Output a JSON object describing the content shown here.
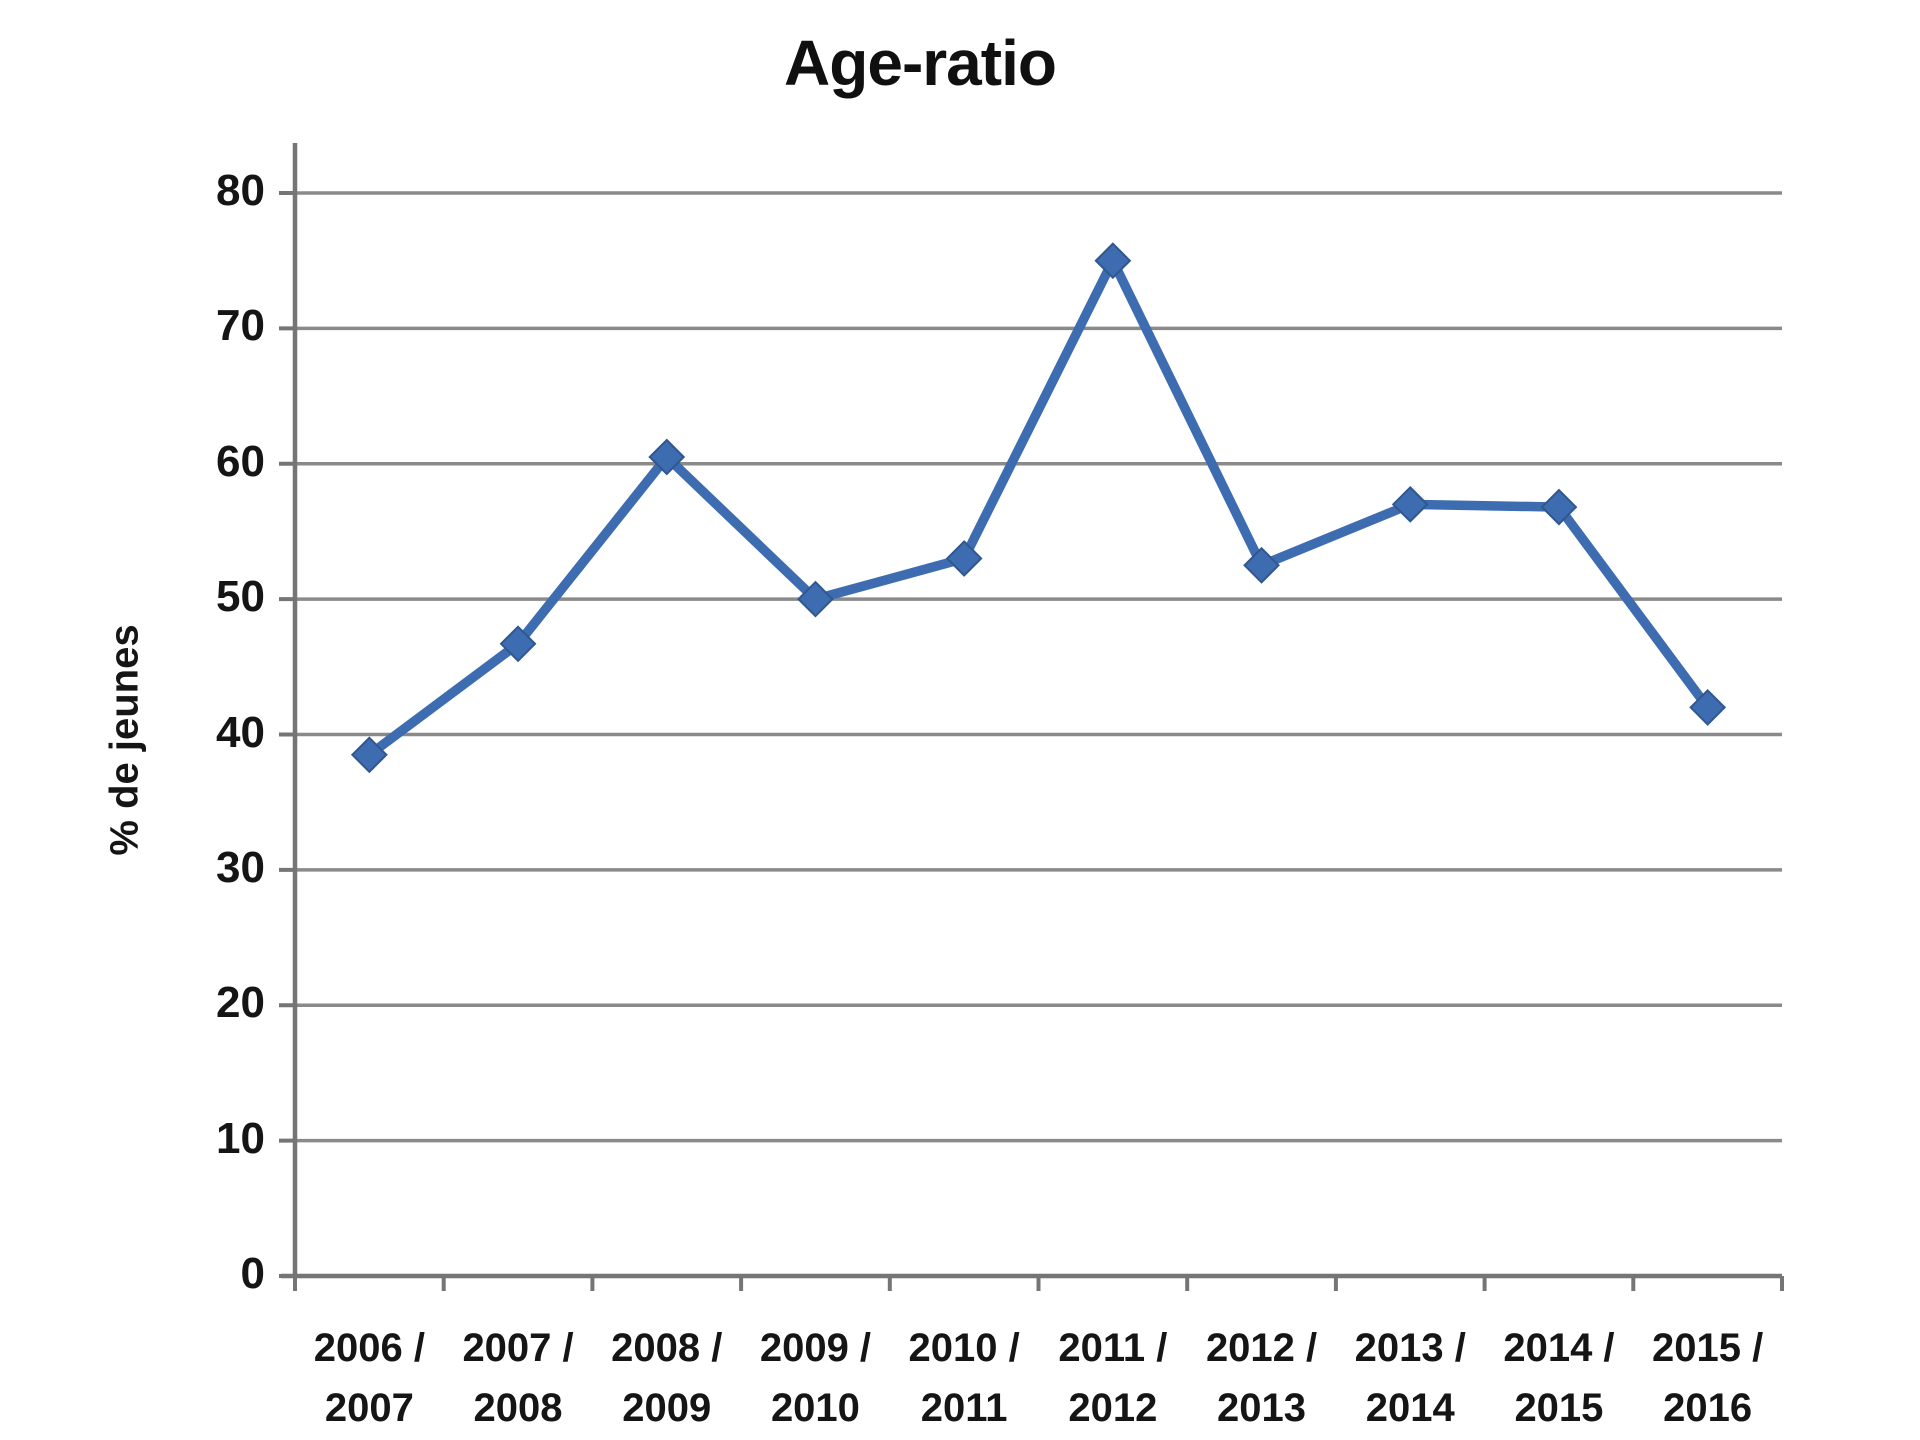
{
  "chart_data": {
    "type": "line",
    "title": "Age-ratio",
    "ylabel": "% de jeunes",
    "xlabel": "",
    "ylim": [
      0,
      80
    ],
    "ytick_interval": 10,
    "ytick_labels": [
      "0",
      "10",
      "20",
      "30",
      "40",
      "50",
      "60",
      "70",
      "80"
    ],
    "grid": true,
    "legend": "none",
    "categories": [
      "2006 / 2007",
      "2007 / 2008",
      "2008 / 2009",
      "2009 / 2010",
      "2010 / 2011",
      "2011 / 2012",
      "2012 / 2013",
      "2013 / 2014",
      "2014 / 2015",
      "2015 / 2016"
    ],
    "x_tick_labels_line1": [
      "2006 /",
      "2007 /",
      "2008 /",
      "2009 /",
      "2010 /",
      "2011 /",
      "2012 /",
      "2013 /",
      "2014 /",
      "2015 /"
    ],
    "x_tick_labels_line2": [
      "2007",
      "2008",
      "2009",
      "2010",
      "2011",
      "2012",
      "2013",
      "2014",
      "2015",
      "2016"
    ],
    "series": [
      {
        "name": "% de jeunes",
        "values": [
          38.5,
          46.7,
          60.5,
          50,
          53,
          75,
          52.5,
          57,
          56.8,
          42
        ],
        "color": "#3e6cb0",
        "marker": "diamond"
      }
    ]
  },
  "colors": {
    "line": "#3e6cb0",
    "marker_fill": "#3e6cb0",
    "marker_border": "#30578f",
    "gridline": "#8a8a8a",
    "axis": "#757575",
    "label_text": "#151515",
    "title_text": "#101010",
    "background": "#ffffff"
  }
}
